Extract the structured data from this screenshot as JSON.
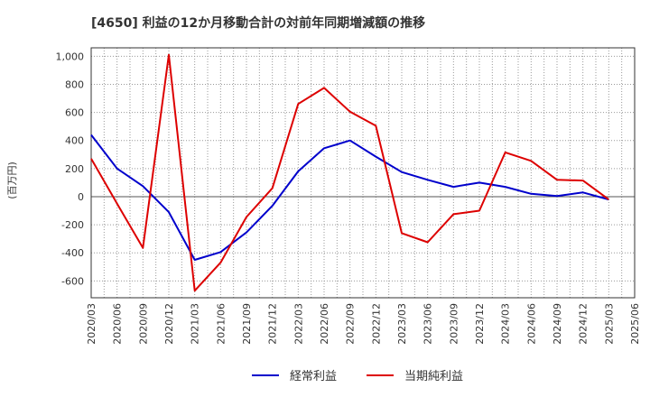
{
  "chart_data": {
    "type": "line",
    "title": "[4650]  利益の12か月移動合計の対前年同期増減額の推移",
    "ylabel": "(百万円)",
    "xlabel": "",
    "ylim": [
      -720,
      1060
    ],
    "yticks": [
      -600,
      -400,
      -200,
      0,
      200,
      400,
      600,
      800,
      1000
    ],
    "ytick_labels": [
      "-600",
      "-400",
      "-200",
      "0",
      "200",
      "400",
      "600",
      "800",
      "1,000"
    ],
    "categories": [
      "2020/03",
      "2020/06",
      "2020/09",
      "2020/12",
      "2021/03",
      "2021/06",
      "2021/09",
      "2021/12",
      "2022/03",
      "2022/06",
      "2022/09",
      "2022/12",
      "2023/03",
      "2023/06",
      "2023/09",
      "2023/12",
      "2024/03",
      "2024/06",
      "2024/09",
      "2024/12",
      "2025/03",
      "2025/06"
    ],
    "series": [
      {
        "name": "経常利益",
        "color": "#0000cc",
        "values": [
          440,
          200,
          75,
          -110,
          -450,
          -395,
          -255,
          -65,
          180,
          345,
          400,
          285,
          175,
          120,
          70,
          100,
          70,
          20,
          5,
          30,
          -20,
          null
        ]
      },
      {
        "name": "当期純利益",
        "color": "#dd0000",
        "values": [
          270,
          -50,
          -365,
          1010,
          -670,
          -470,
          -145,
          60,
          660,
          775,
          605,
          505,
          -260,
          -325,
          -125,
          -100,
          315,
          255,
          120,
          115,
          -20,
          null
        ]
      }
    ],
    "grid": true,
    "legend": "bottom"
  }
}
